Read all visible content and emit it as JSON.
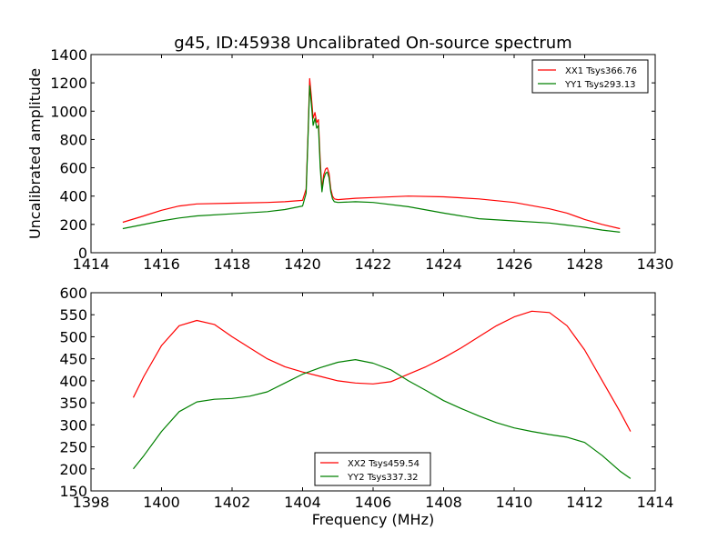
{
  "title": "g45, ID:45938 Uncalibrated On-source spectrum",
  "chart_data": [
    {
      "type": "line",
      "ylabel": "Uncalibrated amplitude",
      "xlabel": "",
      "xlim": [
        1414,
        1430
      ],
      "ylim": [
        0,
        1400
      ],
      "xticks": [
        1414,
        1416,
        1418,
        1420,
        1422,
        1424,
        1426,
        1428,
        1430
      ],
      "yticks": [
        0,
        200,
        400,
        600,
        800,
        1000,
        1200,
        1400
      ],
      "legend_position": "upper right",
      "series": [
        {
          "name": "XX1 Tsys366.76",
          "color": "#ff0000",
          "x": [
            1414.9,
            1415.5,
            1416,
            1416.5,
            1417,
            1418,
            1419,
            1419.5,
            1420.0,
            1420.1,
            1420.15,
            1420.2,
            1420.25,
            1420.3,
            1420.35,
            1420.4,
            1420.45,
            1420.5,
            1420.55,
            1420.6,
            1420.65,
            1420.7,
            1420.75,
            1420.8,
            1420.85,
            1420.9,
            1421.0,
            1421.5,
            1422,
            1423,
            1424,
            1425,
            1426,
            1427,
            1427.5,
            1428,
            1428.5,
            1429
          ],
          "values": [
            215,
            260,
            300,
            330,
            345,
            350,
            355,
            360,
            370,
            450,
            800,
            1230,
            1100,
            950,
            990,
            920,
            940,
            650,
            450,
            550,
            590,
            600,
            560,
            450,
            400,
            380,
            375,
            385,
            390,
            400,
            395,
            380,
            355,
            310,
            280,
            235,
            200,
            170
          ]
        },
        {
          "name": "YY1 Tsys293.13",
          "color": "#008000",
          "x": [
            1414.9,
            1415.5,
            1416,
            1416.5,
            1417,
            1418,
            1419,
            1419.5,
            1420.0,
            1420.1,
            1420.15,
            1420.2,
            1420.25,
            1420.3,
            1420.35,
            1420.4,
            1420.45,
            1420.5,
            1420.55,
            1420.6,
            1420.65,
            1420.7,
            1420.75,
            1420.8,
            1420.85,
            1420.9,
            1421.0,
            1421.5,
            1422,
            1423,
            1424,
            1425,
            1426,
            1427,
            1427.5,
            1428,
            1428.5,
            1429
          ],
          "values": [
            170,
            200,
            225,
            245,
            260,
            275,
            290,
            305,
            330,
            420,
            780,
            1180,
            1050,
            900,
            950,
            880,
            900,
            600,
            430,
            520,
            560,
            570,
            530,
            430,
            380,
            360,
            355,
            360,
            355,
            325,
            280,
            240,
            225,
            210,
            195,
            180,
            160,
            145
          ]
        }
      ]
    },
    {
      "type": "line",
      "ylabel": "",
      "xlabel": "Frequency (MHz)",
      "xlim": [
        1398,
        1414
      ],
      "ylim": [
        150,
        600
      ],
      "xticks": [
        1398,
        1400,
        1402,
        1404,
        1406,
        1408,
        1410,
        1412,
        1414
      ],
      "yticks": [
        150,
        200,
        250,
        300,
        350,
        400,
        450,
        500,
        550,
        600
      ],
      "legend_position": "lower center",
      "series": [
        {
          "name": "XX2 Tsys459.54",
          "color": "#ff0000",
          "x": [
            1399.2,
            1399.5,
            1400,
            1400.5,
            1401,
            1401.5,
            1402,
            1402.5,
            1403,
            1403.5,
            1404,
            1404.5,
            1405,
            1405.5,
            1406,
            1406.5,
            1407,
            1407.5,
            1408,
            1408.5,
            1409,
            1409.5,
            1410,
            1410.5,
            1411,
            1411.5,
            1412,
            1412.5,
            1413,
            1413.3
          ],
          "values": [
            362,
            410,
            480,
            525,
            537,
            528,
            500,
            475,
            450,
            432,
            420,
            410,
            400,
            395,
            393,
            398,
            415,
            432,
            452,
            475,
            500,
            525,
            545,
            558,
            555,
            525,
            470,
            400,
            330,
            285
          ]
        },
        {
          "name": "YY2 Tsys337.32",
          "color": "#008000",
          "x": [
            1399.2,
            1399.5,
            1400,
            1400.5,
            1401,
            1401.5,
            1402,
            1402.5,
            1403,
            1403.5,
            1404,
            1404.5,
            1405,
            1405.5,
            1406,
            1406.5,
            1407,
            1407.5,
            1408,
            1408.5,
            1409,
            1409.5,
            1410,
            1410.5,
            1411,
            1411.5,
            1412,
            1412.5,
            1413,
            1413.3
          ],
          "values": [
            200,
            230,
            285,
            330,
            352,
            358,
            360,
            365,
            375,
            395,
            415,
            430,
            442,
            448,
            440,
            425,
            400,
            378,
            355,
            337,
            320,
            305,
            293,
            285,
            278,
            272,
            260,
            230,
            195,
            178
          ]
        }
      ]
    }
  ]
}
